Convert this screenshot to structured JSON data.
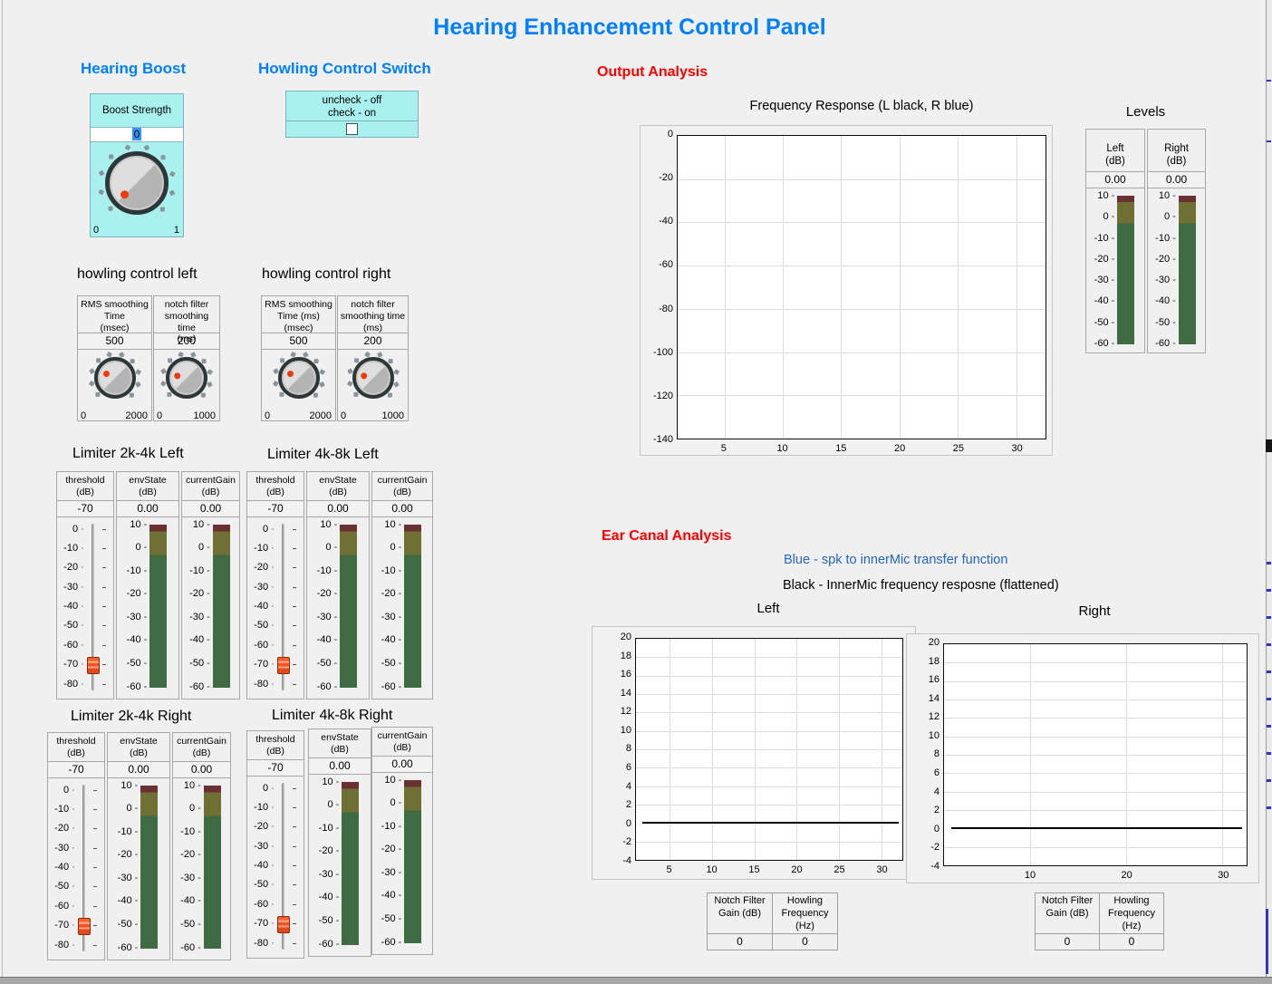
{
  "window": {
    "title": "Hearing Enhancement Control Panel"
  },
  "colors": {
    "accent_blue": "#0080ff",
    "heading_red": "#ff0000",
    "legend_blue": "#2166c4",
    "cyan_panel": "#a8f1ef",
    "meter_red": "#6b3132",
    "meter_olive": "#6e7034",
    "meter_green": "#3e6b41",
    "slider_handle_orange": "#ef5226",
    "knob_dot_orange": "#ee3c0e"
  },
  "hearing_boost": {
    "heading": "Hearing Boost",
    "knob": {
      "label": "Boost Strength",
      "value": "0",
      "min": "0",
      "max": "1"
    }
  },
  "howling_switch": {
    "heading": "Howling Control Switch",
    "caption": "uncheck - off\ncheck - on",
    "checked": false
  },
  "howling_left": {
    "heading": "howling control left",
    "knobs": [
      {
        "label": "RMS smoothing\nTime\n(msec)",
        "value": "500",
        "min": "0",
        "max": "2000"
      },
      {
        "label": "notch filter\nsmoothing time\n(ms)",
        "value": "200",
        "min": "0",
        "max": "1000"
      }
    ]
  },
  "howling_right": {
    "heading": "howling control right",
    "knobs": [
      {
        "label": "RMS smoothing\nTime (ms)\n(msec)",
        "value": "500",
        "min": "0",
        "max": "2000"
      },
      {
        "label": "notch filter\nsmoothing time\n(ms)",
        "value": "200",
        "min": "0",
        "max": "1000"
      }
    ]
  },
  "output_analysis": {
    "heading": "Output Analysis"
  },
  "levels": {
    "heading": "Levels",
    "scale": [
      "10",
      "0",
      "-10",
      "-20",
      "-30",
      "-40",
      "-50",
      "-60"
    ],
    "meters": [
      {
        "label": "Left\n(dB)",
        "value": "0.00"
      },
      {
        "label": "Right\n(dB)",
        "value": "0.00"
      }
    ]
  },
  "limiter_scales": {
    "threshold": [
      "0",
      "-10",
      "-20",
      "-30",
      "-40",
      "-50",
      "-60",
      "-70",
      "-80"
    ],
    "meter": [
      "10",
      "0",
      "-10",
      "-20",
      "-30",
      "-40",
      "-50",
      "-60"
    ]
  },
  "limiters": [
    {
      "heading": "Limiter 2k-4k Left",
      "threshold_label": "threshold\n(dB)",
      "threshold_value": "-70",
      "env_label": "envState\n(dB)",
      "env_value": "0.00",
      "gain_label": "currentGain\n(dB)",
      "gain_value": "0.00"
    },
    {
      "heading": "Limiter 4k-8k Left",
      "threshold_label": "threshold\n(dB)",
      "threshold_value": "-70",
      "env_label": "envState\n(dB)",
      "env_value": "0.00",
      "gain_label": "currentGain\n(dB)",
      "gain_value": "0.00"
    },
    {
      "heading": "Limiter 2k-4k Right",
      "threshold_label": "threshold\n(dB)",
      "threshold_value": "-70",
      "env_label": "envState\n(dB)",
      "env_value": "0.00",
      "gain_label": "currentGain\n(dB)",
      "gain_value": "0.00"
    },
    {
      "heading": "Limiter 4k-8k Right",
      "threshold_label": "threshold\n(dB)",
      "threshold_value": "-70",
      "env_label": "envState\n(dB)",
      "env_value": "0.00",
      "gain_label": "currentGain\n(dB)",
      "gain_value": "0.00"
    }
  ],
  "ear_canal": {
    "heading": "Ear Canal Analysis",
    "legend_blue": "Blue - spk to innerMic transfer function",
    "legend_black": "Black - InnerMic frequency resposne (flattened)"
  },
  "notch_tables": {
    "left": {
      "col1_header": "Notch Filter\nGain (dB)",
      "col2_header": "Howling\nFrequency\n(Hz)",
      "col1_value": "0",
      "col2_value": "0"
    },
    "right": {
      "col1_header": "Notch Filter\nGain (dB)",
      "col2_header": "Howling\nFrequency\n(Hz)",
      "col1_value": "0",
      "col2_value": "0"
    }
  },
  "chart_data": [
    {
      "id": "frequency_response",
      "type": "line",
      "title": "Frequency Response (L black, R blue)",
      "xlabel": "",
      "ylabel": "",
      "xticks": [
        "5",
        "10",
        "15",
        "20",
        "25",
        "30"
      ],
      "yticks": [
        "0",
        "-20",
        "-40",
        "-60",
        "-80",
        "-100",
        "-120",
        "-140"
      ],
      "xlim": [
        1,
        32.5
      ],
      "ylim": [
        -140,
        0
      ],
      "grid": true,
      "series": [
        {
          "name": "L",
          "color": "#000000",
          "values": []
        },
        {
          "name": "R",
          "color": "#0000ff",
          "values": []
        }
      ]
    },
    {
      "id": "ear_canal_left",
      "type": "line",
      "title": "Left",
      "xticks": [
        "5",
        "10",
        "15",
        "20",
        "25",
        "30"
      ],
      "yticks": [
        "20",
        "18",
        "16",
        "14",
        "12",
        "10",
        "8",
        "6",
        "4",
        "2",
        "0",
        "-2",
        "-4"
      ],
      "xlim": [
        1,
        32.5
      ],
      "ylim": [
        -4,
        20
      ],
      "grid": true,
      "series": [
        {
          "name": "spk to innerMic transfer function",
          "color": "#0000ff",
          "values": []
        },
        {
          "name": "InnerMic frequency resposne (flattened)",
          "color": "#000000",
          "constant_y": 0,
          "x_range": [
            1,
            32
          ]
        }
      ]
    },
    {
      "id": "ear_canal_right",
      "type": "line",
      "title": "Right",
      "xticks": [
        "10",
        "20",
        "30"
      ],
      "yticks": [
        "20",
        "18",
        "16",
        "14",
        "12",
        "10",
        "8",
        "6",
        "4",
        "2",
        "0",
        "-2",
        "-4"
      ],
      "xlim": [
        1,
        32.5
      ],
      "ylim": [
        -4,
        20
      ],
      "grid": true,
      "series": [
        {
          "name": "spk to innerMic transfer function",
          "color": "#0000ff",
          "values": []
        },
        {
          "name": "InnerMic frequency resposne (flattened)",
          "color": "#000000",
          "constant_y": 0,
          "x_range": [
            1,
            32
          ]
        }
      ]
    }
  ]
}
